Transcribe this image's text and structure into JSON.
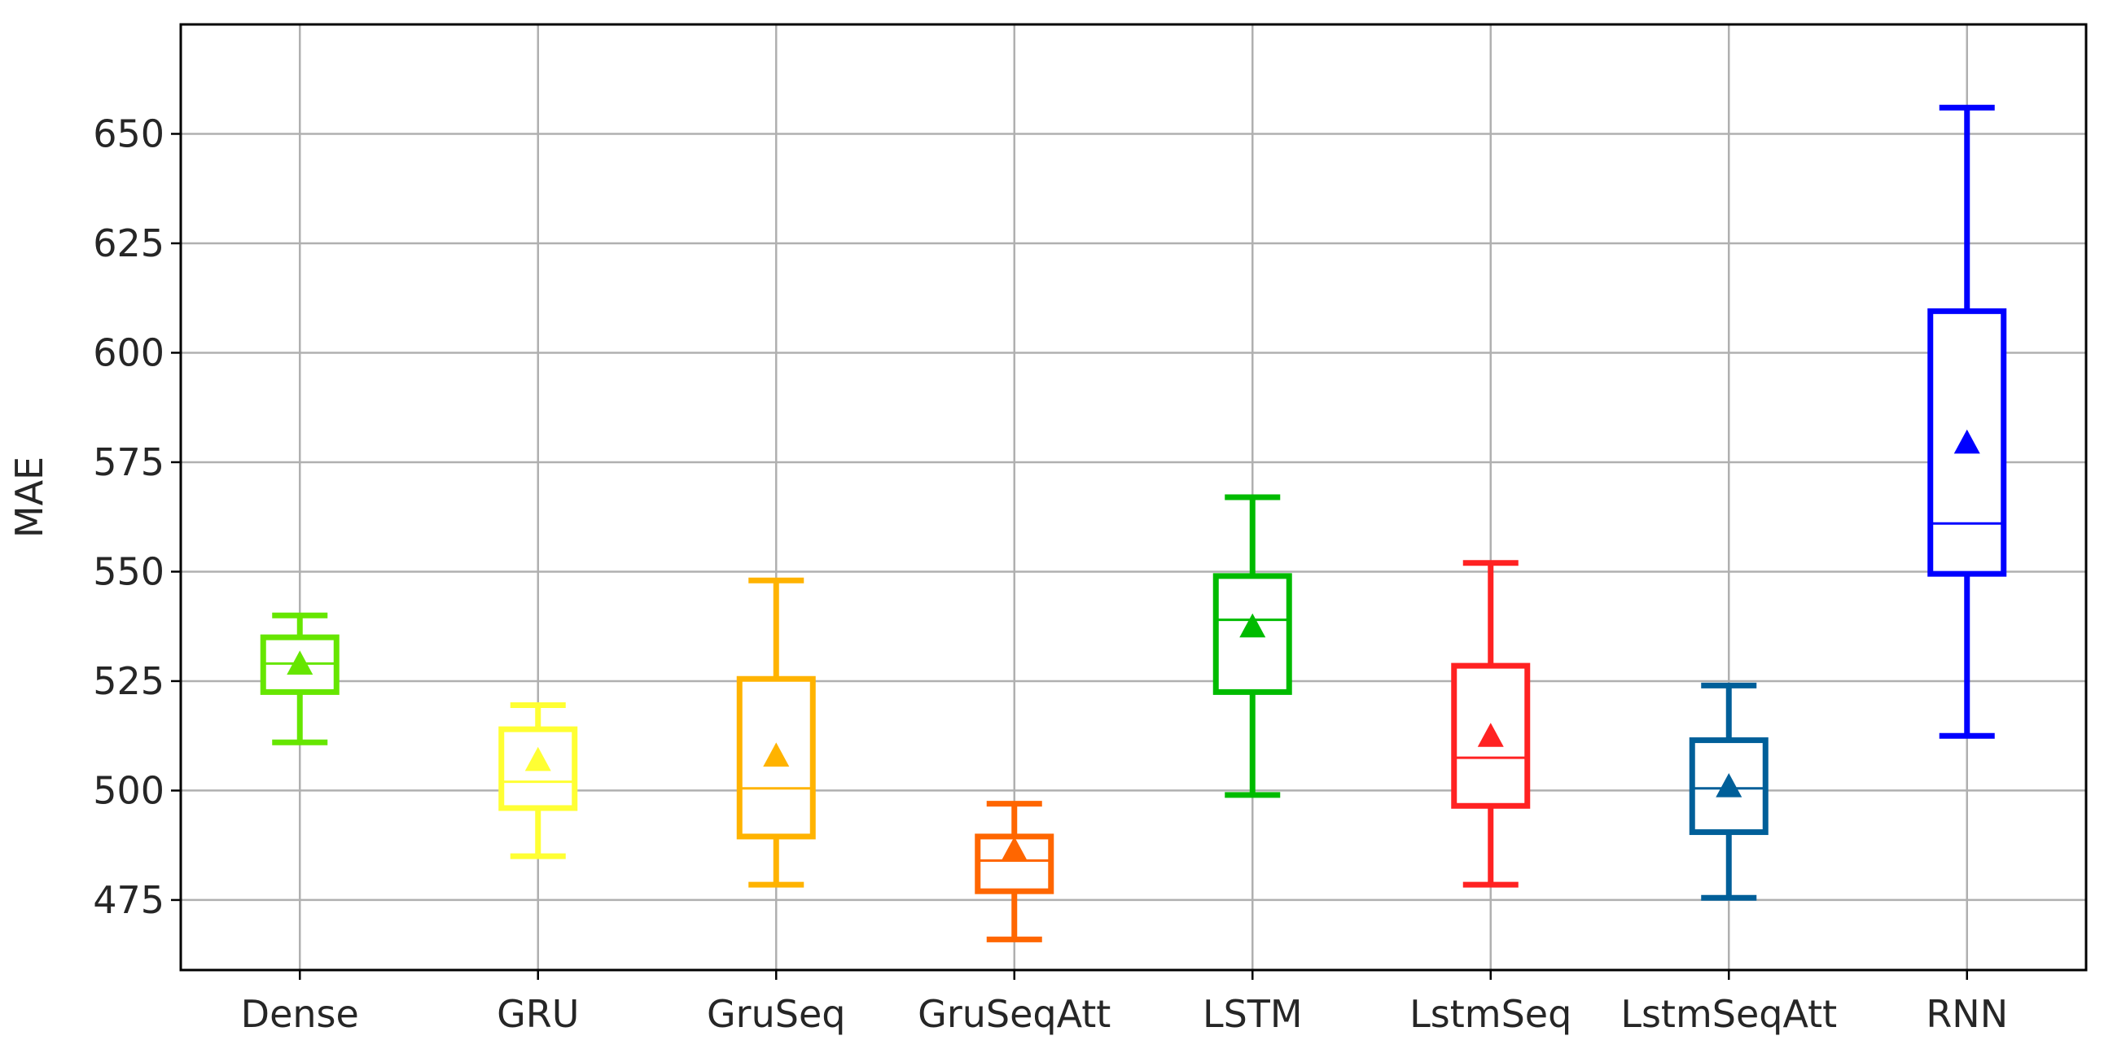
{
  "chart_data": {
    "type": "box",
    "title": "",
    "xlabel": "",
    "ylabel": "MAE",
    "ylim": [
      459,
      675
    ],
    "yticks": [
      475,
      500,
      525,
      550,
      575,
      600,
      625,
      650
    ],
    "grid": true,
    "categories": [
      "Dense",
      "GRU",
      "GruSeq",
      "GruSeqAtt",
      "LSTM",
      "LstmSeq",
      "LstmSeqAtt",
      "RNN"
    ],
    "boxes": [
      {
        "category": "Dense",
        "whisker_low": 511,
        "q1": 522.5,
        "median": 529,
        "q3": 535,
        "whisker_high": 540,
        "mean": 529,
        "color": "#66e600"
      },
      {
        "category": "GRU",
        "whisker_low": 485,
        "q1": 496,
        "median": 502,
        "q3": 514,
        "whisker_high": 519.5,
        "mean": 507,
        "color": "#ffff33"
      },
      {
        "category": "GruSeq",
        "whisker_low": 478.5,
        "q1": 489.5,
        "median": 500.5,
        "q3": 525.5,
        "whisker_high": 548,
        "mean": 508,
        "color": "#ffb300"
      },
      {
        "category": "GruSeqAtt",
        "whisker_low": 466,
        "q1": 477,
        "median": 484,
        "q3": 489.5,
        "whisker_high": 497,
        "mean": 486.5,
        "color": "#ff6600"
      },
      {
        "category": "LSTM",
        "whisker_low": 499,
        "q1": 522.5,
        "median": 539,
        "q3": 549,
        "whisker_high": 567,
        "mean": 537.5,
        "color": "#00bb00"
      },
      {
        "category": "LstmSeq",
        "whisker_low": 478.5,
        "q1": 496.5,
        "median": 507.5,
        "q3": 528.5,
        "whisker_high": 552,
        "mean": 512.5,
        "color": "#ff2222"
      },
      {
        "category": "LstmSeqAtt",
        "whisker_low": 475.5,
        "q1": 490.5,
        "median": 500.5,
        "q3": 511.5,
        "whisker_high": 524,
        "mean": 501,
        "color": "#005f99"
      },
      {
        "category": "RNN",
        "whisker_low": 512.5,
        "q1": 549.5,
        "median": 561,
        "q3": 609.5,
        "whisker_high": 656,
        "mean": 579.5,
        "color": "#0000ff"
      }
    ]
  }
}
